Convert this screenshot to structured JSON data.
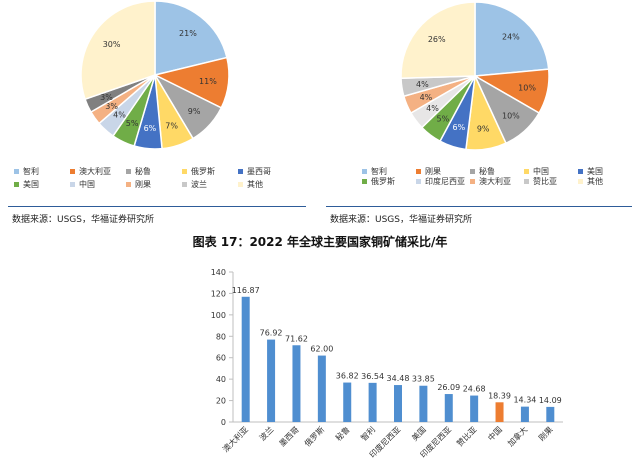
{
  "left_panel": {
    "legend": [
      {
        "label": "智利",
        "color": "#9dc3e6"
      },
      {
        "label": "澳大利亚",
        "color": "#ed7d31"
      },
      {
        "label": "秘鲁",
        "color": "#a5a5a5"
      },
      {
        "label": "俄罗斯",
        "color": "#ffd966"
      },
      {
        "label": "墨西哥",
        "color": "#4472c4"
      },
      {
        "label": "美国",
        "color": "#70ad47"
      },
      {
        "label": "中国",
        "color": "#c9d6e8"
      },
      {
        "label": "刚果",
        "color": "#f4b183"
      },
      {
        "label": "波兰",
        "color": "#c8c8c8"
      },
      {
        "label": "其他",
        "color": "#fff2cc"
      }
    ],
    "source": "数据来源：USGS，华福证券研究所"
  },
  "right_panel": {
    "legend": [
      {
        "label": "智利",
        "color": "#9dc3e6"
      },
      {
        "label": "刚果",
        "color": "#ed7d31"
      },
      {
        "label": "秘鲁",
        "color": "#a5a5a5"
      },
      {
        "label": "中国",
        "color": "#ffd966"
      },
      {
        "label": "美国",
        "color": "#4472c4"
      },
      {
        "label": "俄罗斯",
        "color": "#70ad47"
      },
      {
        "label": "印度尼西亚",
        "color": "#c9d6e8"
      },
      {
        "label": "澳大利亚",
        "color": "#f4b183"
      },
      {
        "label": "赞比亚",
        "color": "#c8c8c8"
      },
      {
        "label": "其他",
        "color": "#fff2cc"
      }
    ],
    "source": "数据来源：USGS，华福证券研究所"
  },
  "figure_title": "图表 17：2022 年全球主要国家铜矿储采比/年",
  "chart_data": [
    {
      "type": "pie",
      "categories": [
        "智利",
        "澳大利亚",
        "秘鲁",
        "俄罗斯",
        "墨西哥",
        "美国",
        "中国",
        "刚果",
        "波兰",
        "其他"
      ],
      "values": [
        21,
        11,
        9,
        7,
        6,
        5,
        4,
        3,
        3,
        30
      ],
      "data_labels": [
        "21%",
        "11%",
        "9%",
        "7%",
        "6%",
        "5%",
        "4%",
        "3%",
        "3%",
        "30%"
      ],
      "colors": [
        "#9dc3e6",
        "#ed7d31",
        "#a5a5a5",
        "#ffd966",
        "#4472c4",
        "#70ad47",
        "#c9d6e8",
        "#f4b183",
        "#808080",
        "#fff2cc"
      ],
      "legend_position": "bottom"
    },
    {
      "type": "pie",
      "categories": [
        "智利",
        "刚果",
        "秘鲁",
        "中国",
        "美国",
        "俄罗斯",
        "印度尼西亚",
        "澳大利亚",
        "赞比亚",
        "其他"
      ],
      "values": [
        24,
        10,
        10,
        9,
        6,
        5,
        4,
        4,
        4,
        26
      ],
      "data_labels": [
        "24%",
        "10%",
        "10%",
        "9%",
        "6%",
        "5%",
        "4%",
        "4%",
        "4%",
        "26%"
      ],
      "colors": [
        "#9dc3e6",
        "#ed7d31",
        "#a5a5a5",
        "#ffd966",
        "#4472c4",
        "#70ad47",
        "#e7e6e6",
        "#f4b183",
        "#c8c8c8",
        "#fff2cc"
      ],
      "legend_position": "bottom"
    },
    {
      "type": "bar",
      "categories": [
        "澳大利亚",
        "波兰",
        "墨西哥",
        "俄罗斯",
        "秘鲁",
        "智利",
        "印度尼西亚",
        "美国",
        "印度尼西亚",
        "赞比亚",
        "中国",
        "加拿大",
        "刚果"
      ],
      "values": [
        116.87,
        76.92,
        71.62,
        62.0,
        36.82,
        36.54,
        34.48,
        33.85,
        26.09,
        24.68,
        18.39,
        14.34,
        14.09
      ],
      "data_labels": [
        "116.87",
        "76.92",
        "71.62",
        "62.00",
        "36.82",
        "36.54",
        "34.48",
        "33.85",
        "26.09",
        "24.68",
        "18.39",
        "14.34",
        "14.09"
      ],
      "ylim": [
        0,
        140
      ],
      "yticks": [
        "0",
        "20",
        "40",
        "60",
        "80",
        "100",
        "120",
        "140"
      ],
      "colors": {
        "default": "#4f8ed0",
        "highlight": "#ed7d31"
      },
      "highlight_index": 10
    }
  ]
}
